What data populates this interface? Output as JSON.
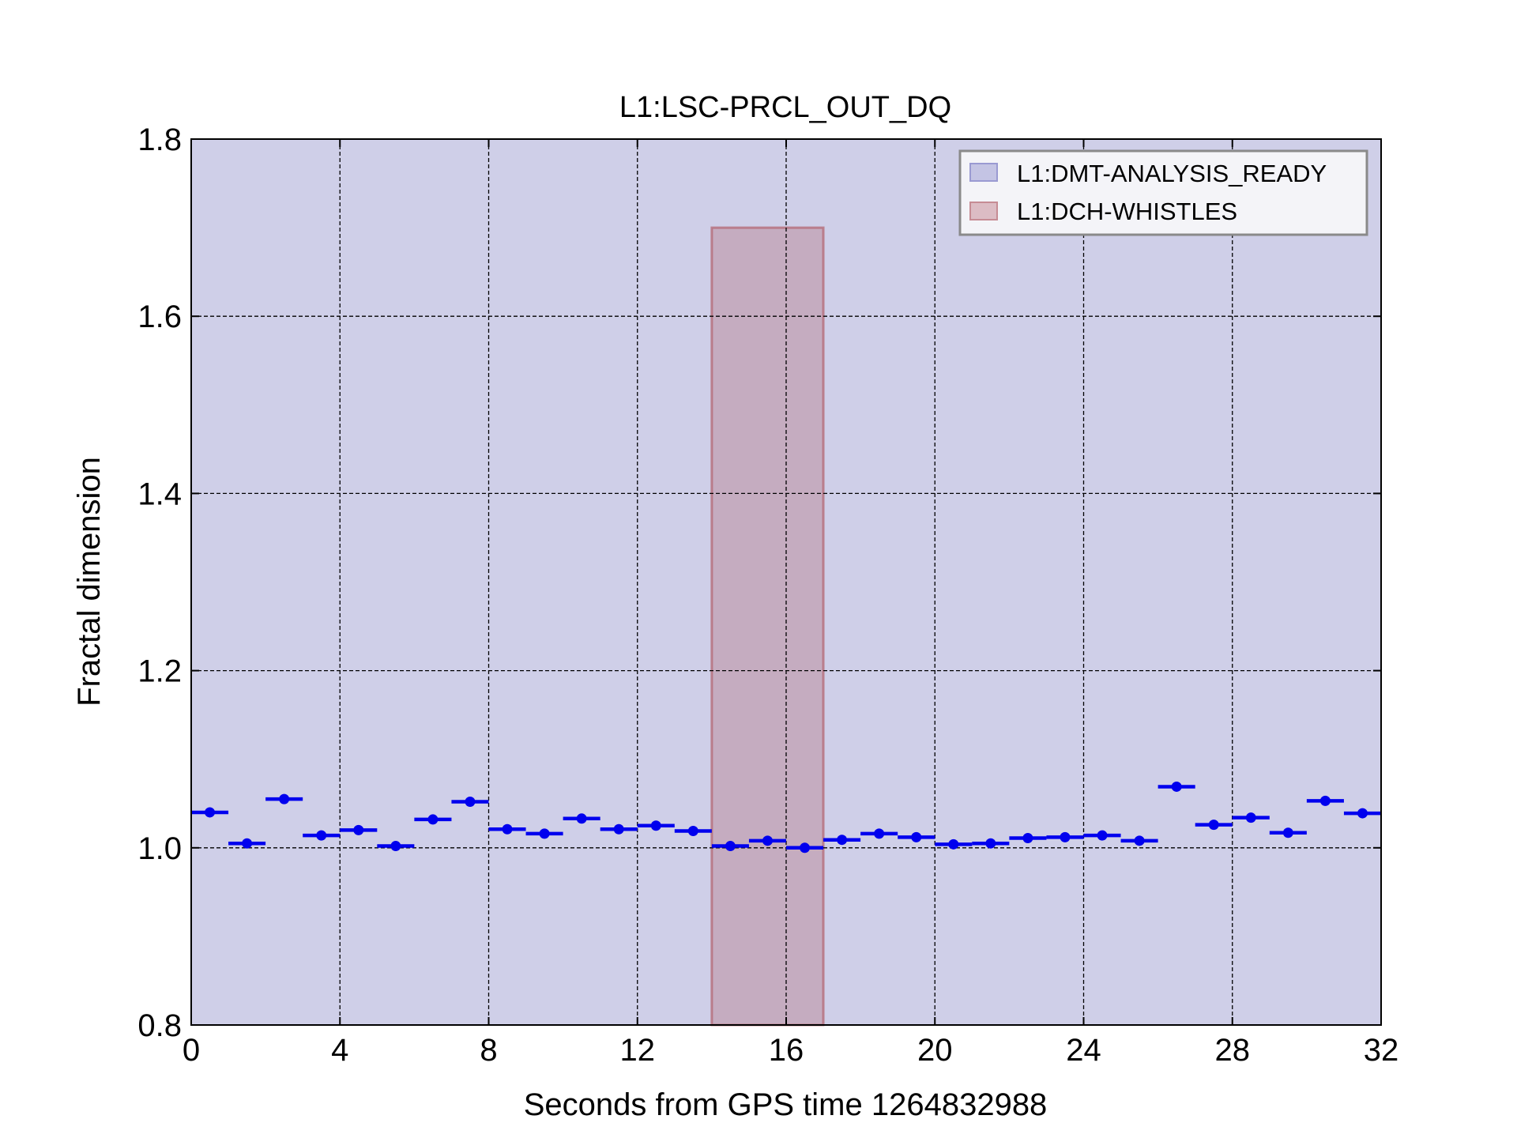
{
  "chart_data": {
    "type": "scatter",
    "title": "L1:LSC-PRCL_OUT_DQ",
    "xlabel": "Seconds from GPS time 1264832988",
    "ylabel": "Fractal dimension",
    "xlim": [
      0,
      32
    ],
    "ylim": [
      0.8,
      1.8
    ],
    "xticks": [
      0,
      4,
      8,
      12,
      16,
      20,
      24,
      28,
      32
    ],
    "xtick_labels": [
      "0",
      "4",
      "8",
      "12",
      "16",
      "20",
      "24",
      "28",
      "32"
    ],
    "yticks": [
      0.8,
      1.0,
      1.2,
      1.4,
      1.6,
      1.8
    ],
    "ytick_labels": [
      "0.8",
      "1.0",
      "1.2",
      "1.4",
      "1.6",
      "1.8"
    ],
    "grid": true,
    "legend_position": "top-right",
    "point_color": "#0000ee",
    "point_half_width": 0.5,
    "points": [
      {
        "x": 0.5,
        "y": 1.04
      },
      {
        "x": 1.5,
        "y": 1.005
      },
      {
        "x": 2.5,
        "y": 1.055
      },
      {
        "x": 3.5,
        "y": 1.014
      },
      {
        "x": 4.5,
        "y": 1.02
      },
      {
        "x": 5.5,
        "y": 1.002
      },
      {
        "x": 6.5,
        "y": 1.032
      },
      {
        "x": 7.5,
        "y": 1.052
      },
      {
        "x": 8.5,
        "y": 1.021
      },
      {
        "x": 9.5,
        "y": 1.016
      },
      {
        "x": 10.5,
        "y": 1.033
      },
      {
        "x": 11.5,
        "y": 1.021
      },
      {
        "x": 12.5,
        "y": 1.025
      },
      {
        "x": 13.5,
        "y": 1.019
      },
      {
        "x": 14.5,
        "y": 1.002
      },
      {
        "x": 15.5,
        "y": 1.008
      },
      {
        "x": 16.5,
        "y": 1.0
      },
      {
        "x": 17.5,
        "y": 1.009
      },
      {
        "x": 18.5,
        "y": 1.016
      },
      {
        "x": 19.5,
        "y": 1.012
      },
      {
        "x": 20.5,
        "y": 1.004
      },
      {
        "x": 21.5,
        "y": 1.005
      },
      {
        "x": 22.5,
        "y": 1.011
      },
      {
        "x": 23.5,
        "y": 1.012
      },
      {
        "x": 24.5,
        "y": 1.014
      },
      {
        "x": 25.5,
        "y": 1.008
      },
      {
        "x": 26.5,
        "y": 1.069
      },
      {
        "x": 27.5,
        "y": 1.026
      },
      {
        "x": 28.5,
        "y": 1.034
      },
      {
        "x": 29.5,
        "y": 1.017
      },
      {
        "x": 30.5,
        "y": 1.053
      },
      {
        "x": 31.5,
        "y": 1.039
      }
    ],
    "segments": [
      {
        "name": "L1:DMT-ANALYSIS_READY",
        "x_start": 0,
        "x_end": 32,
        "y_low": 0.8,
        "y_high": 1.8,
        "color": "#8c8cc8",
        "opacity": 0.42
      },
      {
        "name": "L1:DCH-WHISTLES",
        "x_start": 14,
        "x_end": 17,
        "y_low": 0.8,
        "y_high": 1.7,
        "color": "#b2636e",
        "opacity": 0.32
      }
    ],
    "legend": [
      "L1:DMT-ANALYSIS_READY",
      "L1:DCH-WHISTLES"
    ]
  }
}
